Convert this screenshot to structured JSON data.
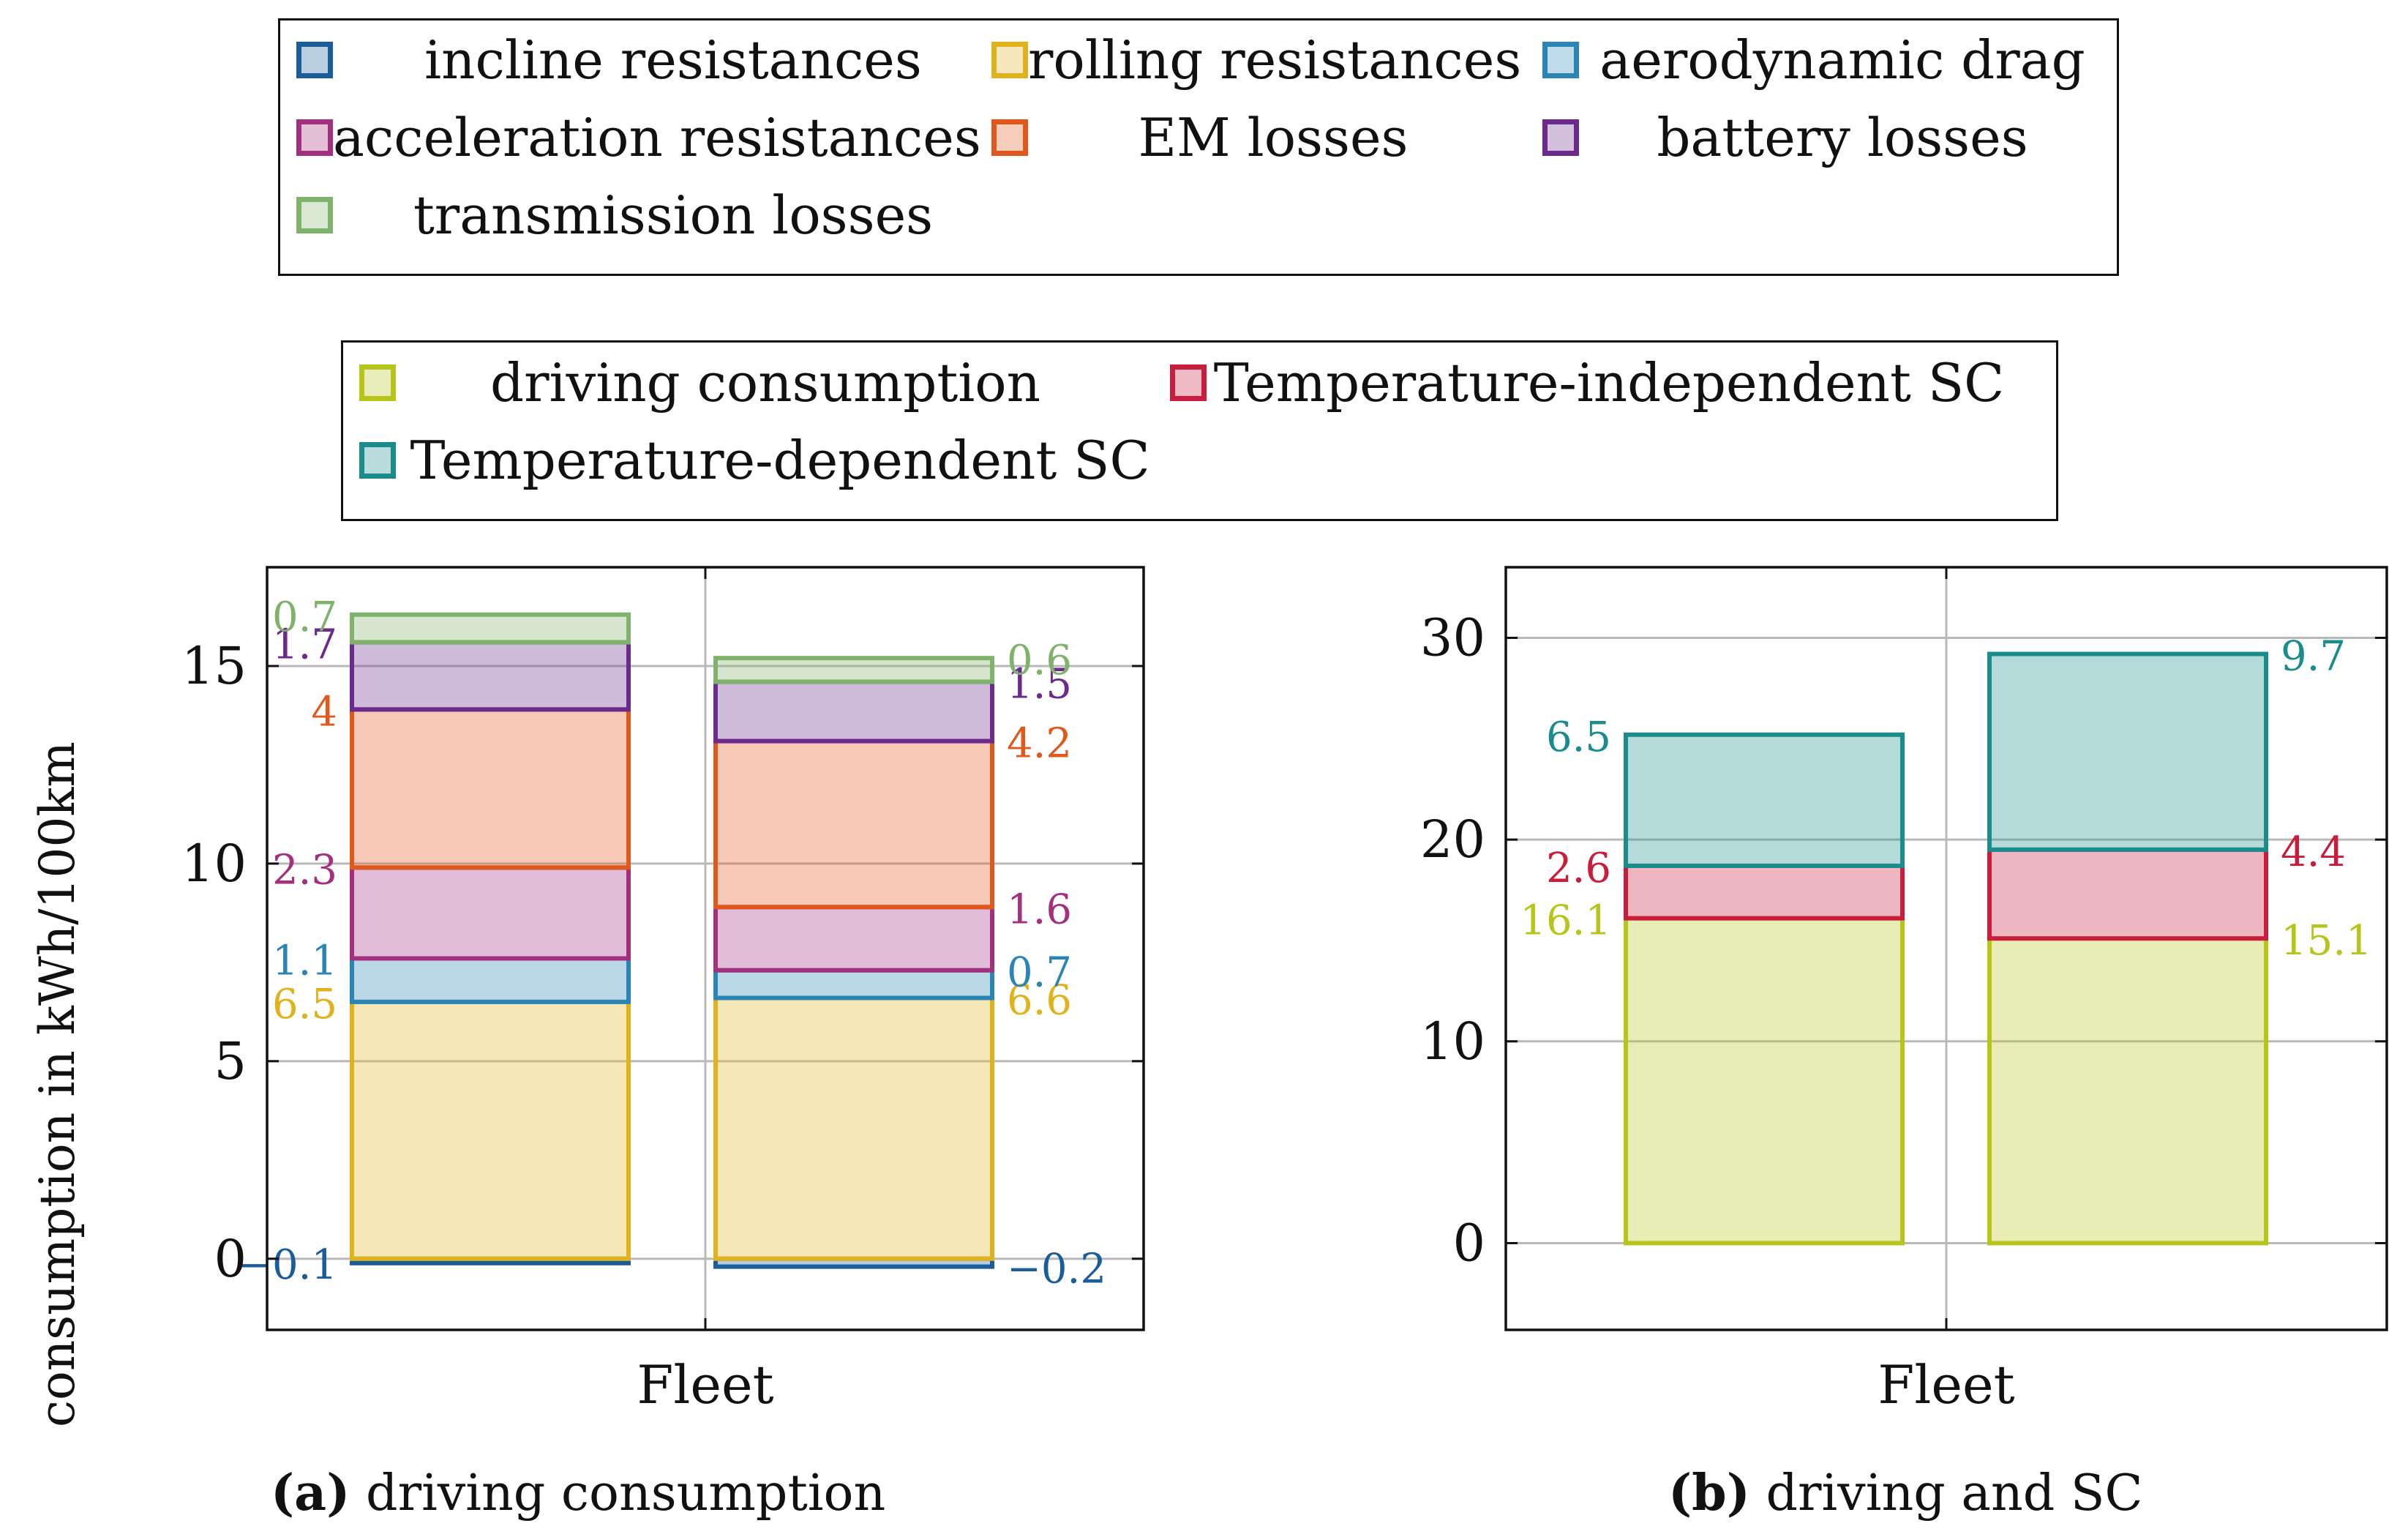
{
  "colors": {
    "incline": "#1b5c9b",
    "rolling": "#e0b31c",
    "aero": "#2a85b5",
    "accel": "#a3307f",
    "em": "#e0581c",
    "battery": "#6b2a8c",
    "transmission": "#7fb26a",
    "driving": "#b7c41a",
    "sc_indep": "#c81d3c",
    "sc_dep": "#1a8c8c",
    "grid": "#b8b8b8",
    "axis": "#111111"
  },
  "legend_a": [
    {
      "label": "incline resistances",
      "color_key": "incline"
    },
    {
      "label": "rolling resistances",
      "color_key": "rolling"
    },
    {
      "label": "aerodynamic drag",
      "color_key": "aero"
    },
    {
      "label": "acceleration resistances",
      "color_key": "accel"
    },
    {
      "label": "EM losses",
      "color_key": "em"
    },
    {
      "label": "battery losses",
      "color_key": "battery"
    },
    {
      "label": "transmission losses",
      "color_key": "transmission"
    }
  ],
  "legend_b": [
    {
      "label": "driving consumption",
      "color_key": "driving"
    },
    {
      "label": "Temperature-independent SC",
      "color_key": "sc_indep"
    },
    {
      "label": "Temperature-dependent SC",
      "color_key": "sc_dep"
    }
  ],
  "ylabel": "consumption in kWh/100km",
  "caption_a": {
    "letter": "(a)",
    "text": " driving consumption"
  },
  "caption_b": {
    "letter": "(b)",
    "text": " driving and SC"
  },
  "chart_data": [
    {
      "type": "bar",
      "stacked": true,
      "title": "driving consumption",
      "xlabel": "Fleet",
      "ylabel": "consumption in kWh/100km",
      "ylim": [
        -1.8,
        17.5
      ],
      "yticks": [
        0,
        5,
        10,
        15
      ],
      "grid": true,
      "bars": [
        {
          "label_side": "left",
          "segments": [
            {
              "name": "incline resistances",
              "color_key": "incline",
              "value": -0.1,
              "label": "−0.1"
            },
            {
              "name": "rolling resistances",
              "color_key": "rolling",
              "value": 6.5,
              "label": "6.5"
            },
            {
              "name": "aerodynamic drag",
              "color_key": "aero",
              "value": 1.1,
              "label": "1.1"
            },
            {
              "name": "acceleration resistances",
              "color_key": "accel",
              "value": 2.3,
              "label": "2.3"
            },
            {
              "name": "EM losses",
              "color_key": "em",
              "value": 4.0,
              "label": "4"
            },
            {
              "name": "battery losses",
              "color_key": "battery",
              "value": 1.7,
              "label": "1.7"
            },
            {
              "name": "transmission losses",
              "color_key": "transmission",
              "value": 0.7,
              "label": "0.7"
            }
          ]
        },
        {
          "label_side": "right",
          "segments": [
            {
              "name": "incline resistances",
              "color_key": "incline",
              "value": -0.2,
              "label": "−0.2"
            },
            {
              "name": "rolling resistances",
              "color_key": "rolling",
              "value": 6.6,
              "label": "6.6"
            },
            {
              "name": "aerodynamic drag",
              "color_key": "aero",
              "value": 0.7,
              "label": "0.7"
            },
            {
              "name": "acceleration resistances",
              "color_key": "accel",
              "value": 1.6,
              "label": "1.6"
            },
            {
              "name": "EM losses",
              "color_key": "em",
              "value": 4.2,
              "label": "4.2"
            },
            {
              "name": "battery losses",
              "color_key": "battery",
              "value": 1.5,
              "label": "1.5"
            },
            {
              "name": "transmission losses",
              "color_key": "transmission",
              "value": 0.6,
              "label": "0.6"
            }
          ]
        }
      ]
    },
    {
      "type": "bar",
      "stacked": true,
      "title": "driving and SC",
      "xlabel": "Fleet",
      "ylabel": "",
      "ylim": [
        -4.3,
        33.5
      ],
      "yticks": [
        0,
        10,
        20,
        30
      ],
      "grid": true,
      "bars": [
        {
          "label_side": "left",
          "segments": [
            {
              "name": "driving consumption",
              "color_key": "driving",
              "value": 16.1,
              "label": "16.1"
            },
            {
              "name": "Temperature-independent SC",
              "color_key": "sc_indep",
              "value": 2.6,
              "label": "2.6"
            },
            {
              "name": "Temperature-dependent SC",
              "color_key": "sc_dep",
              "value": 6.5,
              "label": "6.5"
            }
          ]
        },
        {
          "label_side": "right",
          "segments": [
            {
              "name": "driving consumption",
              "color_key": "driving",
              "value": 15.1,
              "label": "15.1"
            },
            {
              "name": "Temperature-independent SC",
              "color_key": "sc_indep",
              "value": 4.4,
              "label": "4.4"
            },
            {
              "name": "Temperature-dependent SC",
              "color_key": "sc_dep",
              "value": 9.7,
              "label": "9.7"
            }
          ]
        }
      ]
    }
  ]
}
